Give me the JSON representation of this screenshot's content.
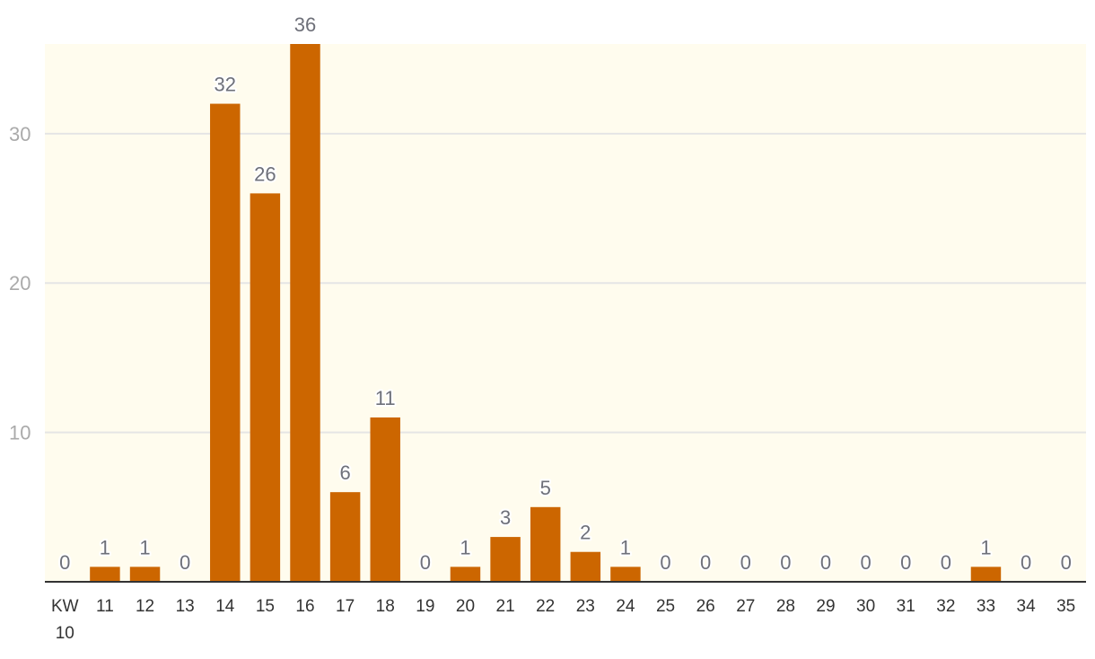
{
  "chart_data": {
    "type": "bar",
    "categories": [
      "KW\n10",
      "11",
      "12",
      "13",
      "14",
      "15",
      "16",
      "17",
      "18",
      "19",
      "20",
      "21",
      "22",
      "23",
      "24",
      "25",
      "26",
      "27",
      "28",
      "29",
      "30",
      "31",
      "32",
      "33",
      "34",
      "35"
    ],
    "values": [
      0,
      1,
      1,
      0,
      32,
      26,
      36,
      6,
      11,
      0,
      1,
      3,
      5,
      2,
      1,
      0,
      0,
      0,
      0,
      0,
      0,
      0,
      0,
      1,
      0,
      0
    ],
    "ylim": [
      0,
      36
    ],
    "yticks": [
      10,
      20,
      30
    ],
    "grid": true,
    "data_labels": true,
    "colors": {
      "bar": "#cc6600",
      "plot_background": "#fffcee",
      "gridline": "#e5e5e5",
      "axis": "#333333"
    }
  }
}
